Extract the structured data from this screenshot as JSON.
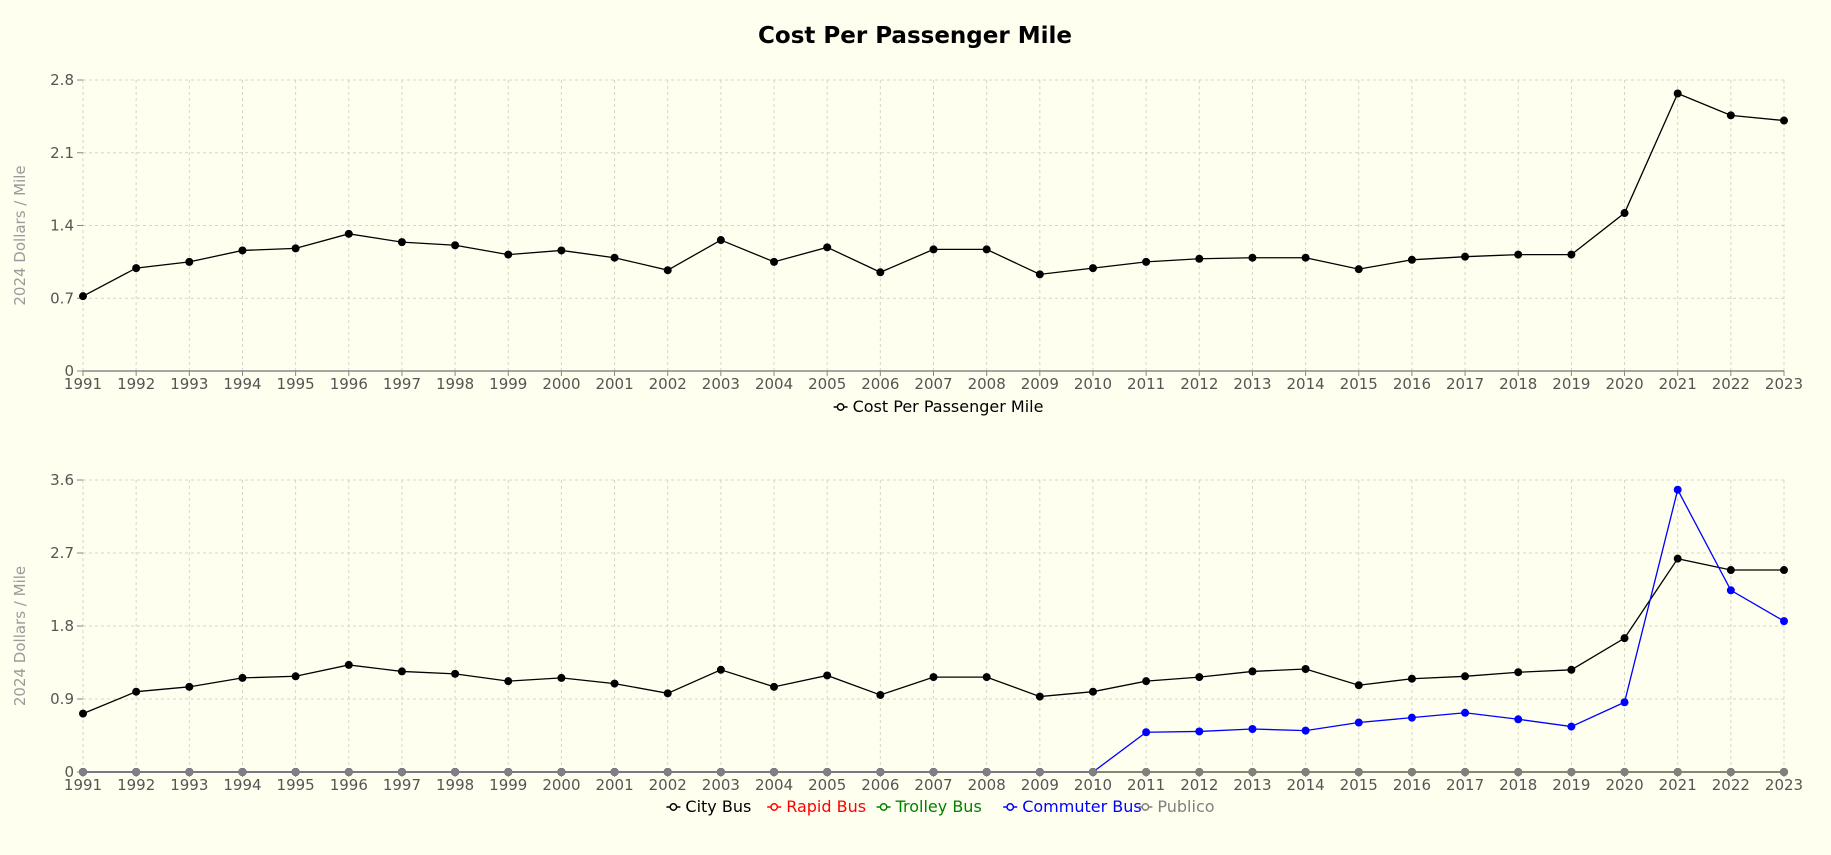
{
  "title": "Cost Per Passenger Mile",
  "chart_data": [
    {
      "type": "line",
      "ylabel": "2024 Dollars / Mile",
      "ylim": [
        0,
        2.8
      ],
      "yticks": [
        "0",
        "0.7",
        "1.4",
        "2.1",
        "2.8"
      ],
      "x": [
        "1991",
        "1992",
        "1993",
        "1994",
        "1995",
        "1996",
        "1997",
        "1998",
        "1999",
        "2000",
        "2001",
        "2002",
        "2003",
        "2004",
        "2005",
        "2006",
        "2007",
        "2008",
        "2009",
        "2010",
        "2011",
        "2012",
        "2013",
        "2014",
        "2015",
        "2016",
        "2017",
        "2018",
        "2019",
        "2020",
        "2021",
        "2022",
        "2023"
      ],
      "grid": true,
      "legend_position": "bottom-center",
      "series": [
        {
          "name": "Cost Per Passenger Mile",
          "color": "#000000",
          "values": [
            0.72,
            0.99,
            1.05,
            1.16,
            1.18,
            1.32,
            1.24,
            1.21,
            1.12,
            1.16,
            1.09,
            0.97,
            1.26,
            1.05,
            1.19,
            0.95,
            1.17,
            1.17,
            0.93,
            0.99,
            1.05,
            1.08,
            1.09,
            1.09,
            0.98,
            1.07,
            1.1,
            1.12,
            1.12,
            1.52,
            2.67,
            2.46,
            2.41
          ]
        }
      ]
    },
    {
      "type": "line",
      "ylabel": "2024 Dollars / Mile",
      "ylim": [
        0,
        3.6
      ],
      "yticks": [
        "0",
        "0.9",
        "1.8",
        "2.7",
        "3.6"
      ],
      "x": [
        "1991",
        "1992",
        "1993",
        "1994",
        "1995",
        "1996",
        "1997",
        "1998",
        "1999",
        "2000",
        "2001",
        "2002",
        "2003",
        "2004",
        "2005",
        "2006",
        "2007",
        "2008",
        "2009",
        "2010",
        "2011",
        "2012",
        "2013",
        "2014",
        "2015",
        "2016",
        "2017",
        "2018",
        "2019",
        "2020",
        "2021",
        "2022",
        "2023"
      ],
      "grid": true,
      "legend_position": "bottom-center",
      "series": [
        {
          "name": "City Bus",
          "color": "#000000",
          "values": [
            0.72,
            0.99,
            1.05,
            1.16,
            1.18,
            1.32,
            1.24,
            1.21,
            1.12,
            1.16,
            1.09,
            0.97,
            1.26,
            1.05,
            1.19,
            0.95,
            1.17,
            1.17,
            0.93,
            0.99,
            1.12,
            1.17,
            1.24,
            1.27,
            1.07,
            1.15,
            1.18,
            1.23,
            1.26,
            1.65,
            2.63,
            2.49,
            2.49
          ]
        },
        {
          "name": "Rapid Bus",
          "color": "#ff0000",
          "values": [
            0,
            0,
            0,
            0,
            0,
            0,
            0,
            0,
            0,
            0,
            0,
            0,
            0,
            0,
            0,
            0,
            0,
            0,
            0,
            0,
            0,
            0,
            0,
            0,
            0,
            0,
            0,
            0,
            0,
            0,
            0,
            0,
            0
          ]
        },
        {
          "name": "Trolley Bus",
          "color": "#008000",
          "values": [
            0,
            0,
            0,
            0,
            0,
            0,
            0,
            0,
            0,
            0,
            0,
            0,
            0,
            0,
            0,
            0,
            0,
            0,
            0,
            0,
            0,
            0,
            0,
            0,
            0,
            0,
            0,
            0,
            0,
            0,
            0,
            0,
            0
          ]
        },
        {
          "name": "Commuter Bus",
          "color": "#0000ff",
          "values": [
            0,
            0,
            0,
            0,
            0,
            0,
            0,
            0,
            0,
            0,
            0,
            0,
            0,
            0,
            0,
            0,
            0,
            0,
            0,
            0,
            0.49,
            0.5,
            0.53,
            0.51,
            0.61,
            0.67,
            0.73,
            0.65,
            0.56,
            0.86,
            3.48,
            2.24,
            1.86
          ]
        },
        {
          "name": "Publico",
          "color": "#808080",
          "values": [
            0,
            0,
            0,
            0,
            0,
            0,
            0,
            0,
            0,
            0,
            0,
            0,
            0,
            0,
            0,
            0,
            0,
            0,
            0,
            0,
            0,
            0,
            0,
            0,
            0,
            0,
            0,
            0,
            0,
            0,
            0,
            0,
            0
          ]
        }
      ]
    }
  ]
}
